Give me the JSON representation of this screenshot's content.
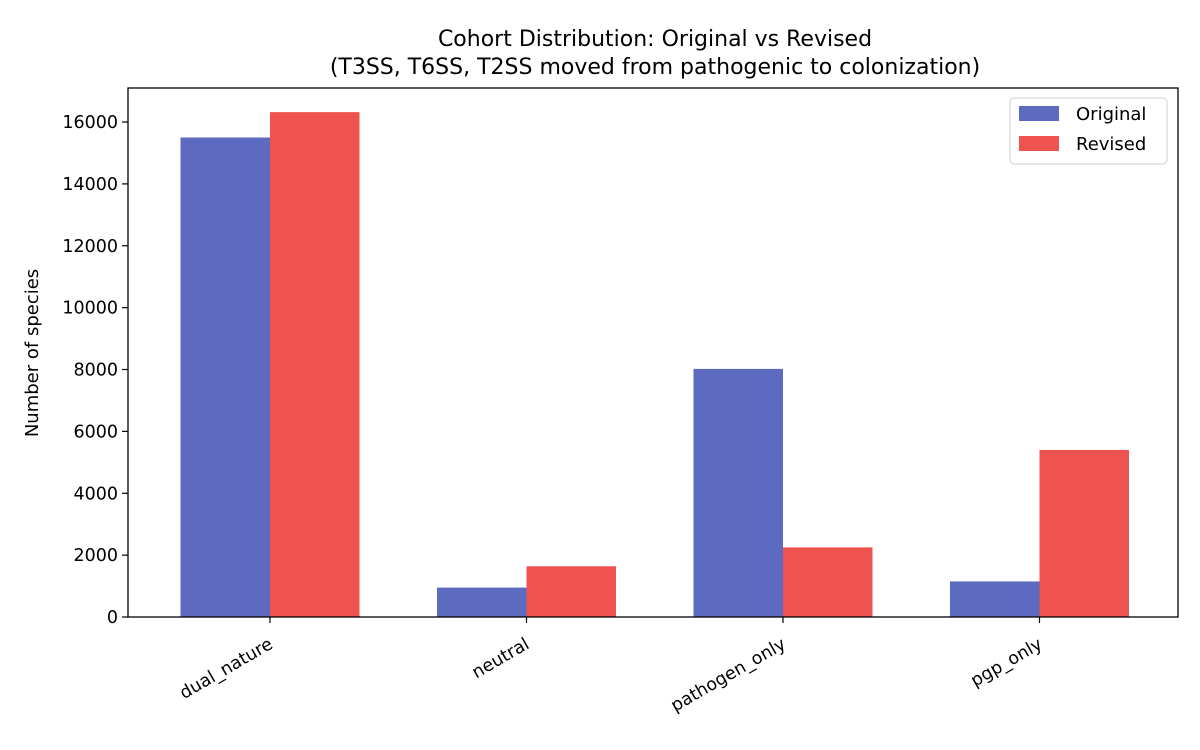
{
  "chart_data": {
    "type": "bar",
    "title": "Cohort Distribution: Original vs Revised",
    "subtitle": "(T3SS, T6SS, T2SS moved from pathogenic to colonization)",
    "xlabel": "",
    "ylabel": "Number of species",
    "categories": [
      "dual_nature",
      "neutral",
      "pathogen_only",
      "pgp_only"
    ],
    "series": [
      {
        "name": "Original",
        "color": "#5c6bc0",
        "values": [
          15500,
          950,
          8020,
          1150
        ]
      },
      {
        "name": "Revised",
        "color": "#ef5350",
        "values": [
          16320,
          1640,
          2250,
          5400
        ]
      }
    ],
    "ylim": [
      0,
      17100
    ],
    "yticks": [
      0,
      2000,
      4000,
      6000,
      8000,
      10000,
      12000,
      14000,
      16000
    ],
    "grid": false,
    "legend_position": "top-right"
  }
}
